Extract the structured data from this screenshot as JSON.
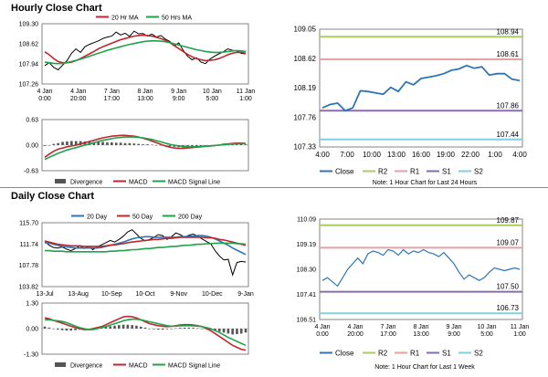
{
  "sections": [
    {
      "title": "Hourly Close Chart"
    },
    {
      "title": "Daily Close Chart"
    }
  ],
  "chart_data": [
    {
      "id": "hourly_price",
      "type": "line",
      "ylim": [
        107.26,
        109.3
      ],
      "yticks": [
        "109.30",
        "108.62",
        "107.94",
        "107.26"
      ],
      "ytick_values": [
        109.3,
        108.62,
        107.94,
        107.26
      ],
      "xticks": [
        "4 Jan\n0:00",
        "4 Jan\n20:00",
        "7 Jan\n17:00",
        "8 Jan\n13:00",
        "9 Jan\n9:00",
        "10 Jan\n5:00",
        "11 Jan\n1:00"
      ],
      "legend": [
        "20 Hr MA",
        "50 Hrs MA"
      ],
      "series": [
        {
          "name": "Close",
          "color": "#000000",
          "values": [
            107.88,
            107.98,
            107.82,
            107.74,
            107.9,
            108.05,
            108.3,
            108.45,
            108.33,
            108.52,
            108.6,
            108.66,
            108.72,
            108.8,
            108.85,
            108.88,
            109.02,
            108.92,
            108.98,
            108.87,
            109.05,
            108.96,
            108.97,
            108.88,
            108.95,
            108.85,
            108.9,
            108.78,
            108.7,
            108.55,
            108.65,
            108.4,
            108.2,
            108.08,
            108.15,
            108.0,
            107.95,
            108.1,
            108.2,
            108.28,
            108.35,
            108.45,
            108.4,
            108.38,
            108.3,
            108.28
          ]
        },
        {
          "name": "20 Hr MA",
          "color": "#c0272d",
          "values": [
            108.35,
            108.25,
            108.12,
            108.02,
            107.98,
            107.98,
            108.0,
            108.05,
            108.12,
            108.2,
            108.28,
            108.36,
            108.45,
            108.52,
            108.58,
            108.64,
            108.7,
            108.76,
            108.8,
            108.84,
            108.88,
            108.9,
            108.91,
            108.9,
            108.88,
            108.84,
            108.8,
            108.74,
            108.66,
            108.56,
            108.46,
            108.36,
            108.26,
            108.18,
            108.12,
            108.08,
            108.05,
            108.06,
            108.08,
            108.12,
            108.18,
            108.25,
            108.3,
            108.33,
            108.33,
            108.3
          ]
        },
        {
          "name": "50 Hrs MA",
          "color": "#1fa34a",
          "values": [
            108.0,
            107.98,
            107.96,
            107.95,
            107.96,
            107.98,
            108.02,
            108.06,
            108.1,
            108.15,
            108.2,
            108.25,
            108.3,
            108.35,
            108.4,
            108.44,
            108.48,
            108.52,
            108.56,
            108.6,
            108.63,
            108.66,
            108.69,
            108.71,
            108.72,
            108.72,
            108.71,
            108.69,
            108.66,
            108.62,
            108.58,
            108.54,
            108.5,
            108.46,
            108.42,
            108.39,
            108.36,
            108.34,
            108.33,
            108.33,
            108.34,
            108.36,
            108.38,
            108.39,
            108.38,
            108.36
          ]
        }
      ]
    },
    {
      "id": "hourly_macd",
      "type": "bar",
      "ylim": [
        -0.63,
        0.63
      ],
      "yticks": [
        "0.63",
        "0.00",
        "-0.63"
      ],
      "ytick_values": [
        0.63,
        0.0,
        -0.63
      ],
      "legend": [
        "Divergence",
        "MACD",
        "MACD Signal Line"
      ],
      "series": [
        {
          "name": "Divergence",
          "color": "#555555",
          "values": [
            -0.02,
            0.0,
            0.03,
            0.05,
            0.08,
            0.09,
            0.1,
            0.1,
            0.1,
            0.09,
            0.09,
            0.08,
            0.08,
            0.08,
            0.07,
            0.07,
            0.06,
            0.06,
            0.05,
            0.05,
            0.04,
            0.03,
            0.02,
            0.02,
            0.01,
            0.0,
            -0.01,
            -0.02,
            -0.03,
            -0.04,
            -0.05,
            -0.06,
            -0.07,
            -0.07,
            -0.06,
            -0.05,
            -0.04,
            -0.03,
            -0.02,
            -0.01,
            0.0,
            0.01,
            0.02,
            0.03,
            0.03,
            0.02
          ]
        },
        {
          "name": "MACD",
          "color": "#c0272d",
          "values": [
            -0.3,
            -0.22,
            -0.15,
            -0.1,
            -0.07,
            -0.04,
            -0.02,
            0.0,
            0.03,
            0.06,
            0.09,
            0.12,
            0.15,
            0.18,
            0.2,
            0.22,
            0.23,
            0.24,
            0.24,
            0.23,
            0.22,
            0.2,
            0.17,
            0.14,
            0.1,
            0.06,
            0.02,
            -0.02,
            -0.05,
            -0.07,
            -0.08,
            -0.08,
            -0.07,
            -0.06,
            -0.05,
            -0.04,
            -0.03,
            -0.02,
            -0.01,
            0.0,
            0.02,
            0.03,
            0.04,
            0.05,
            0.05,
            0.04
          ]
        },
        {
          "name": "MACD Signal Line",
          "color": "#1fa34a",
          "values": [
            -0.35,
            -0.3,
            -0.25,
            -0.2,
            -0.16,
            -0.12,
            -0.09,
            -0.06,
            -0.03,
            0.0,
            0.03,
            0.06,
            0.09,
            0.12,
            0.14,
            0.16,
            0.18,
            0.19,
            0.2,
            0.2,
            0.2,
            0.19,
            0.18,
            0.16,
            0.14,
            0.11,
            0.08,
            0.05,
            0.02,
            0.0,
            -0.02,
            -0.03,
            -0.04,
            -0.04,
            -0.04,
            -0.03,
            -0.03,
            -0.02,
            -0.01,
            0.0,
            0.01,
            0.02,
            0.03,
            0.03,
            0.04,
            0.04
          ]
        }
      ]
    },
    {
      "id": "hourly_levels",
      "type": "line",
      "ylim": [
        107.33,
        109.05
      ],
      "yticks": [
        "109.05",
        "108.62",
        "108.19",
        "107.76",
        "107.33"
      ],
      "ytick_values": [
        109.05,
        108.62,
        108.19,
        107.76,
        107.33
      ],
      "xticks": [
        "4:00",
        "7:00",
        "10:00",
        "13:00",
        "16:00",
        "19:00",
        "22:00",
        "1:00",
        "4:00"
      ],
      "legend": [
        "Close",
        "R2",
        "R1",
        "S1",
        "S2"
      ],
      "levels": [
        {
          "name": "R2",
          "value": 108.94,
          "label": "108.94",
          "color": "#a6cf5c"
        },
        {
          "name": "R1",
          "value": 108.61,
          "label": "108.61",
          "color": "#e6a1a1"
        },
        {
          "name": "S1",
          "value": 107.86,
          "label": "107.86",
          "color": "#8a6bb0"
        },
        {
          "name": "S2",
          "value": 107.44,
          "label": "107.44",
          "color": "#7fd0e0"
        }
      ],
      "series": [
        {
          "name": "Close",
          "color": "#2e75b6",
          "values": [
            107.9,
            107.95,
            107.97,
            107.86,
            107.9,
            108.15,
            108.14,
            108.12,
            108.1,
            108.2,
            108.14,
            108.28,
            108.24,
            108.33,
            108.35,
            108.37,
            108.4,
            108.45,
            108.47,
            108.52,
            108.48,
            108.5,
            108.38,
            108.4,
            108.4,
            108.32,
            108.3
          ]
        }
      ],
      "note": "Note: 1 Hour Chart for Last 24 Hours"
    },
    {
      "id": "daily_price",
      "type": "line",
      "ylim": [
        103.82,
        115.7
      ],
      "yticks": [
        "115.70",
        "111.74",
        "107.78",
        "103.82"
      ],
      "ytick_values": [
        115.7,
        111.74,
        107.78,
        103.82
      ],
      "xticks": [
        "13-Jul",
        "13-Aug",
        "10-Sep",
        "10-Oct",
        "9-Nov",
        "10-Dec",
        "9-Jan"
      ],
      "legend": [
        "20 Day",
        "50 Day",
        "200 Day"
      ],
      "series": [
        {
          "name": "Close",
          "color": "#000000",
          "values": [
            112.3,
            111.5,
            111.1,
            111.0,
            111.2,
            110.8,
            110.5,
            110.9,
            111.4,
            110.9,
            111.3,
            110.7,
            111.2,
            111.6,
            112.0,
            112.4,
            112.1,
            112.6,
            113.2,
            114.0,
            114.4,
            113.6,
            112.8,
            112.3,
            112.6,
            113.0,
            113.5,
            113.3,
            112.6,
            113.1,
            113.8,
            113.5,
            113.0,
            113.4,
            113.6,
            113.2,
            112.7,
            112.2,
            111.8,
            110.5,
            109.5,
            108.8,
            108.9,
            106.0,
            108.3,
            108.5,
            108.4
          ]
        },
        {
          "name": "20 Day",
          "color": "#2e75b6",
          "values": [
            112.0,
            111.9,
            111.7,
            111.5,
            111.3,
            111.2,
            111.1,
            111.0,
            111.0,
            111.0,
            111.0,
            111.0,
            111.0,
            111.1,
            111.3,
            111.5,
            111.7,
            111.9,
            112.1,
            112.4,
            112.7,
            112.9,
            113.0,
            113.1,
            113.1,
            113.0,
            113.0,
            113.0,
            113.0,
            113.0,
            113.0,
            113.1,
            113.1,
            113.2,
            113.2,
            113.3,
            113.3,
            113.2,
            113.0,
            112.7,
            112.3,
            111.9,
            111.5,
            111.0,
            110.6,
            110.2,
            109.8
          ]
        },
        {
          "name": "50 Day",
          "color": "#c0272d",
          "values": [
            112.3,
            112.1,
            111.9,
            111.7,
            111.6,
            111.5,
            111.4,
            111.4,
            111.4,
            111.3,
            111.3,
            111.3,
            111.3,
            111.3,
            111.4,
            111.5,
            111.6,
            111.7,
            111.8,
            112.0,
            112.1,
            112.2,
            112.3,
            112.4,
            112.5,
            112.6,
            112.6,
            112.7,
            112.8,
            112.8,
            112.9,
            113.0,
            113.0,
            113.0,
            113.0,
            113.0,
            113.0,
            112.9,
            112.9,
            112.8,
            112.6,
            112.5,
            112.3,
            112.1,
            111.9,
            111.7,
            111.5
          ]
        },
        {
          "name": "200 Day",
          "color": "#1fa34a",
          "values": [
            110.5,
            110.5,
            110.4,
            110.4,
            110.4,
            110.3,
            110.3,
            110.3,
            110.3,
            110.3,
            110.3,
            110.3,
            110.3,
            110.3,
            110.3,
            110.4,
            110.4,
            110.5,
            110.5,
            110.6,
            110.7,
            110.7,
            110.8,
            110.9,
            110.9,
            111.0,
            111.1,
            111.1,
            111.2,
            111.3,
            111.3,
            111.4,
            111.5,
            111.5,
            111.6,
            111.7,
            111.7,
            111.8,
            111.8,
            111.9,
            111.9,
            111.9,
            111.9,
            111.9,
            111.8,
            111.8,
            111.7
          ]
        }
      ]
    },
    {
      "id": "daily_macd",
      "type": "bar",
      "ylim": [
        -1.3,
        1.3
      ],
      "yticks": [
        "1.30",
        "0.00",
        "-1.30"
      ],
      "ytick_values": [
        1.3,
        0.0,
        -1.3
      ],
      "legend": [
        "Divergence",
        "MACD",
        "MACD Signal Line"
      ],
      "series": [
        {
          "name": "Divergence",
          "color": "#555555",
          "values": [
            0.1,
            0.05,
            0.0,
            -0.05,
            -0.08,
            -0.1,
            -0.1,
            -0.08,
            -0.05,
            -0.02,
            0.0,
            0.02,
            0.05,
            0.08,
            0.1,
            0.12,
            0.15,
            0.18,
            0.2,
            0.2,
            0.18,
            0.15,
            0.1,
            0.05,
            0.0,
            -0.03,
            -0.05,
            -0.05,
            -0.03,
            0.0,
            0.02,
            0.04,
            0.05,
            0.05,
            0.04,
            0.02,
            0.0,
            -0.02,
            -0.05,
            -0.1,
            -0.15,
            -0.2,
            -0.25,
            -0.3,
            -0.28,
            -0.25,
            -0.2
          ]
        },
        {
          "name": "MACD",
          "color": "#c0272d",
          "values": [
            0.55,
            0.5,
            0.42,
            0.35,
            0.28,
            0.2,
            0.12,
            0.05,
            0.0,
            -0.05,
            -0.05,
            0.0,
            0.05,
            0.1,
            0.2,
            0.3,
            0.4,
            0.5,
            0.6,
            0.62,
            0.6,
            0.55,
            0.45,
            0.35,
            0.25,
            0.2,
            0.15,
            0.12,
            0.1,
            0.12,
            0.15,
            0.18,
            0.2,
            0.2,
            0.18,
            0.15,
            0.1,
            0.0,
            -0.1,
            -0.25,
            -0.4,
            -0.55,
            -0.7,
            -0.85,
            -0.95,
            -1.05,
            -1.1
          ]
        },
        {
          "name": "MACD Signal Line",
          "color": "#1fa34a",
          "values": [
            0.45,
            0.45,
            0.42,
            0.4,
            0.36,
            0.3,
            0.22,
            0.13,
            0.05,
            0.0,
            -0.05,
            -0.05,
            0.0,
            0.05,
            0.1,
            0.18,
            0.25,
            0.32,
            0.4,
            0.45,
            0.48,
            0.48,
            0.45,
            0.4,
            0.35,
            0.3,
            0.25,
            0.2,
            0.15,
            0.12,
            0.13,
            0.14,
            0.15,
            0.15,
            0.14,
            0.13,
            0.1,
            0.05,
            0.0,
            -0.1,
            -0.2,
            -0.32,
            -0.45,
            -0.55,
            -0.65,
            -0.75,
            -0.85
          ]
        }
      ]
    },
    {
      "id": "daily_levels",
      "type": "line",
      "ylim": [
        106.51,
        110.09
      ],
      "yticks": [
        "110.09",
        "109.19",
        "108.30",
        "107.41",
        "106.51"
      ],
      "ytick_values": [
        110.09,
        109.19,
        108.3,
        107.41,
        106.51
      ],
      "xticks": [
        "4 Jan\n0:00",
        "4 Jan\n20:00",
        "7 Jan\n17:00",
        "8 Jan\n13:00",
        "9 Jan\n9:00",
        "10 Jan\n5:00",
        "11 Jan\n1:00"
      ],
      "legend": [
        "Close",
        "R2",
        "R1",
        "S1",
        "S2"
      ],
      "levels": [
        {
          "name": "R2",
          "value": 109.87,
          "label": "109.87",
          "color": "#a6cf5c"
        },
        {
          "name": "R1",
          "value": 109.07,
          "label": "109.07",
          "color": "#e6a1a1"
        },
        {
          "name": "S1",
          "value": 107.5,
          "label": "107.50",
          "color": "#8a6bb0"
        },
        {
          "name": "S2",
          "value": 106.73,
          "label": "106.73",
          "color": "#7fd0e0"
        }
      ],
      "series": [
        {
          "name": "Close",
          "color": "#2e75b6",
          "values": [
            107.9,
            108.0,
            107.85,
            107.7,
            108.0,
            108.3,
            108.5,
            108.7,
            108.5,
            108.85,
            108.95,
            108.9,
            108.8,
            109.0,
            108.95,
            108.8,
            109.0,
            108.85,
            108.95,
            108.9,
            109.0,
            108.9,
            108.85,
            108.75,
            108.9,
            108.7,
            108.5,
            108.2,
            107.95,
            108.1,
            108.0,
            107.9,
            108.0,
            108.2,
            108.35,
            108.3,
            108.25,
            108.3,
            108.35,
            108.3
          ]
        }
      ],
      "note": "Note: 1 Hour Chart for Last 1 Week"
    }
  ]
}
